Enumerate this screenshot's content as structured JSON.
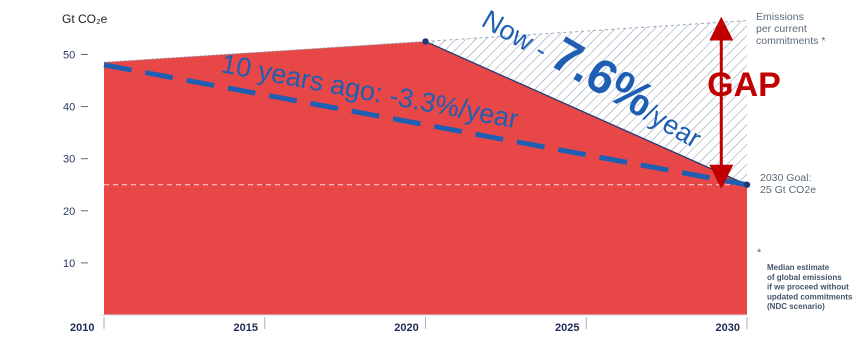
{
  "chart_data": {
    "type": "area",
    "unit_label": "Gt CO₂e",
    "yticks": [
      10,
      20,
      30,
      40,
      50
    ],
    "ylim": [
      0,
      57
    ],
    "xticks": [
      "2010",
      "2015",
      "2020",
      "2025",
      "2030"
    ],
    "xlim": [
      2010,
      2030
    ],
    "grid": false,
    "series": [
      {
        "x": [
          2010,
          2020,
          2030
        ],
        "y": [
          48.5,
          52.5,
          25
        ],
        "fill": "#e84747"
      },
      {
        "x": [
          2020,
          2030
        ],
        "y": [
          52.5,
          56.5
        ],
        "fill": "hatched"
      }
    ],
    "trend_line": {
      "x": [
        2010,
        2030
      ],
      "y": [
        48,
        25
      ]
    },
    "goal_level": 25,
    "gap_arrow": {
      "x": 2029.2,
      "y_from": 25,
      "y_to": 56.5
    },
    "annotations": {
      "emissions_note": [
        "Emissions",
        "per current",
        "commitments *"
      ],
      "goal_note": [
        "2030 Goal:",
        "25 Gt CO2e"
      ],
      "footnote_star": "*",
      "footnote": [
        "Median estimate",
        "of global emissions",
        "if we proceed without",
        "updated commitments",
        "(NDC scenario)"
      ],
      "gap_label": "GAP",
      "ten_years_label": "10 years ago: -3.3%/year",
      "now_prefix": "Now - ",
      "now_value": "7.6%",
      "now_suffix": "/year"
    },
    "colors": {
      "red_area": "#e84747",
      "trend_dash": "#1f5fb3",
      "gap_arrow": "#c00000",
      "hatch": "#8d9ab0",
      "axis": "#5f6b7b"
    }
  }
}
